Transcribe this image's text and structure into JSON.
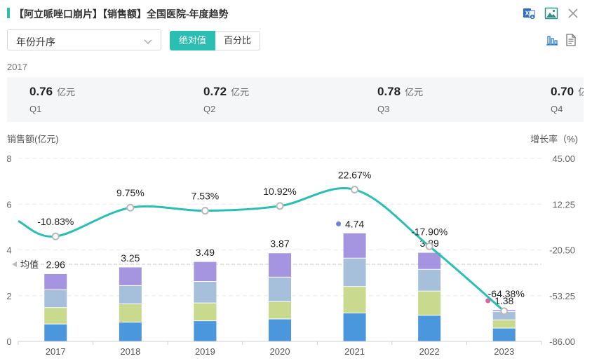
{
  "window": {
    "title": "【阿立哌唑口崩片】【销售额】全国医院-年度趋势",
    "icons": [
      "excel-export-icon",
      "image-export-icon",
      "close-icon"
    ]
  },
  "controls": {
    "sort_value": "年份升序",
    "toggle": [
      "绝对值",
      "百分比"
    ],
    "active_toggle": "绝对值",
    "view_icons": [
      "bar-chart-icon",
      "document-icon"
    ]
  },
  "summary": {
    "year": "2017",
    "quarters": [
      {
        "value": "0.76",
        "unit": "亿元",
        "label": "Q1"
      },
      {
        "value": "0.72",
        "unit": "亿元",
        "label": "Q2"
      },
      {
        "value": "0.78",
        "unit": "亿元",
        "label": "Q3"
      },
      {
        "value": "0.70",
        "unit": "亿元",
        "label": "Q4"
      }
    ]
  },
  "colors": {
    "accent": "#2bbfb3",
    "q1": "#4a97de",
    "q2": "#c9da8e",
    "q3": "#a6c0db",
    "q4": "#a594e0",
    "line": "#2bbfb3",
    "max_dot": "#6f7fd8",
    "min_dot": "#e05ea2"
  },
  "chart_data": {
    "type": "bar",
    "stacked": true,
    "ylabel": "销售额(亿元)",
    "y2label": "增长率（%)",
    "ylim": [
      0,
      8
    ],
    "yticks": [
      "0",
      "2",
      "4",
      "6",
      "8"
    ],
    "y2lim": [
      -86,
      45
    ],
    "y2ticks": [
      "-86.00",
      "-53.25",
      "-20.50",
      "12.25",
      "45.00"
    ],
    "categories": [
      "2017",
      "2018",
      "2019",
      "2020",
      "2021",
      "2022",
      "2023"
    ],
    "series": [
      {
        "values": [
          0.76,
          0.84,
          0.9,
          0.98,
          1.24,
          1.14,
          0.58
        ]
      },
      {
        "values": [
          0.72,
          0.8,
          0.78,
          0.76,
          1.16,
          1.06,
          0.36
        ]
      },
      {
        "values": [
          0.78,
          0.8,
          0.94,
          1.07,
          1.24,
          0.95,
          0.36
        ]
      },
      {
        "values": [
          0.7,
          0.81,
          0.87,
          1.06,
          1.1,
          0.74,
          0.08
        ]
      }
    ],
    "totals": [
      2.96,
      3.25,
      3.49,
      3.87,
      4.74,
      3.89,
      1.38
    ],
    "total_labels": [
      "2.96",
      "3.25",
      "3.49",
      "3.87",
      "4.74",
      "3.89",
      "1.38"
    ],
    "growth": {
      "values": [
        -10.83,
        9.75,
        7.53,
        10.92,
        22.67,
        -17.9,
        -64.38
      ],
      "labels": [
        "-10.83%",
        "9.75%",
        "7.53%",
        "10.92%",
        "22.67%",
        "-17.90%",
        "-64.38%"
      ]
    },
    "average": {
      "label": "均值",
      "value": 3.37
    },
    "grid": true,
    "legend": "none"
  }
}
